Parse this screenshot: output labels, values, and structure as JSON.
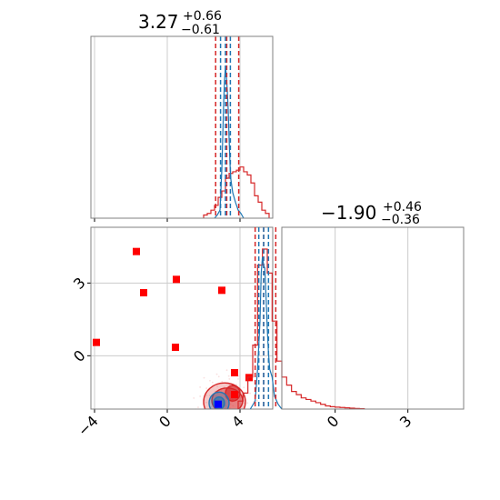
{
  "chart_data": {
    "type": "corner",
    "colors": {
      "series_a": "#d62728",
      "series_b": "#1f77b4",
      "marker_red": "#ff0000",
      "marker_blue": "#0000ff",
      "grid": "#cccccc",
      "frame": "#808080"
    },
    "grid": true,
    "x_range": [
      -4.2,
      5.8
    ],
    "y_range": [
      -2.2,
      5.3
    ],
    "titles": [
      {
        "value": "3.27",
        "plus": "+0.66",
        "minus": "−0.61"
      },
      {
        "value": "−1.90",
        "plus": "+0.46",
        "minus": "−0.36"
      }
    ],
    "x_ticks": [
      {
        "value": -4,
        "label": "−4"
      },
      {
        "value": 0,
        "label": "0"
      },
      {
        "value": 4,
        "label": "4"
      }
    ],
    "y_ticks": [
      {
        "value": 3,
        "label": "3"
      },
      {
        "value": 0,
        "label": "0"
      }
    ],
    "y_param_ticks": [
      {
        "value": 0,
        "label": "0"
      },
      {
        "value": 3,
        "label": "3"
      }
    ],
    "hist_top": {
      "bins_x": [
        2.1,
        2.3,
        2.5,
        2.7,
        2.9,
        3.1,
        3.3,
        3.5,
        3.7,
        3.9,
        4.1,
        4.3,
        4.5,
        4.7,
        4.9,
        5.1,
        5.3,
        5.5
      ],
      "series_a_counts": [
        0.02,
        0.03,
        0.05,
        0.08,
        0.13,
        0.17,
        0.25,
        0.28,
        0.29,
        0.3,
        0.32,
        0.29,
        0.27,
        0.22,
        0.14,
        0.1,
        0.05,
        0.03
      ],
      "series_b_x": [
        2.6,
        2.75,
        2.9,
        3.0,
        3.05,
        3.1,
        3.15,
        3.2,
        3.25,
        3.3,
        3.35,
        3.4,
        3.45,
        3.5,
        3.6,
        3.75,
        3.9,
        4.05,
        4.2
      ],
      "series_b_counts": [
        0.0,
        0.02,
        0.05,
        0.3,
        0.5,
        0.72,
        0.86,
        0.95,
        0.89,
        0.8,
        0.68,
        0.5,
        0.34,
        0.24,
        0.16,
        0.1,
        0.05,
        0.03,
        0.0
      ],
      "series_a_quantiles": [
        2.66,
        3.27,
        3.93
      ],
      "series_b_quantiles": [
        2.93,
        3.2,
        3.47
      ]
    },
    "hist_right": {
      "bins_x": [
        -3.9,
        -3.7,
        -3.5,
        -3.3,
        -3.1,
        -2.9,
        -2.7,
        -2.5,
        -2.3,
        -2.1,
        -1.9,
        -1.7,
        -1.5,
        -1.3,
        -1.1,
        -0.9,
        -0.7,
        -0.5,
        -0.3,
        -0.1,
        0.1,
        0.3,
        0.5,
        0.7,
        0.9,
        1.1
      ],
      "series_a_counts": [
        0.05,
        0.1,
        0.2,
        0.4,
        0.9,
        1.0,
        0.85,
        0.55,
        0.3,
        0.2,
        0.15,
        0.11,
        0.09,
        0.07,
        0.06,
        0.05,
        0.04,
        0.03,
        0.02,
        0.015,
        0.012,
        0.01,
        0.008,
        0.006,
        0.004,
        0.002
      ],
      "series_b_x": [
        -3.5,
        -3.3,
        -3.2,
        -3.1,
        -3.05,
        -3.0,
        -2.95,
        -2.9,
        -2.85,
        -2.8,
        -2.75,
        -2.7,
        -2.6,
        -2.5,
        -2.35,
        -2.2
      ],
      "series_b_counts": [
        0.0,
        0.05,
        0.25,
        0.55,
        0.85,
        0.95,
        0.9,
        0.88,
        0.7,
        0.5,
        0.35,
        0.25,
        0.2,
        0.08,
        0.03,
        0.0
      ],
      "series_a_quantiles": [
        -3.3,
        -2.95,
        -2.45
      ],
      "series_b_quantiles": [
        -3.15,
        -2.95,
        -2.75
      ]
    },
    "joint": {
      "red_markers": [
        {
          "x": -1.7,
          "y": 4.3
        },
        {
          "x": -1.3,
          "y": 2.6
        },
        {
          "x": 0.5,
          "y": 3.15
        },
        {
          "x": 3.0,
          "y": 2.7
        },
        {
          "x": -3.9,
          "y": 0.55
        },
        {
          "x": 0.45,
          "y": 0.35
        },
        {
          "x": 3.7,
          "y": -0.7
        },
        {
          "x": 4.5,
          "y": -0.9
        },
        {
          "x": 3.7,
          "y": -1.6
        }
      ],
      "blue_marker": {
        "x": 2.8,
        "y": -2.0
      },
      "red_contours": [
        {
          "cx": 3.15,
          "cy": -1.9,
          "rx": 1.15,
          "ry": 0.78,
          "level": 0.95
        },
        {
          "cx": 3.3,
          "cy": -1.85,
          "rx": 0.85,
          "ry": 0.52,
          "level": 0.68
        },
        {
          "cx": 3.6,
          "cy": -1.55,
          "rx": 0.4,
          "ry": 0.32,
          "level": 0.3
        }
      ],
      "blue_contours": [
        {
          "cx": 2.85,
          "cy": -1.95,
          "rx": 0.55,
          "ry": 0.45,
          "level": 0.68
        },
        {
          "cx": 2.85,
          "cy": -1.95,
          "rx": 0.3,
          "ry": 0.25,
          "level": 0.3
        }
      ]
    }
  }
}
